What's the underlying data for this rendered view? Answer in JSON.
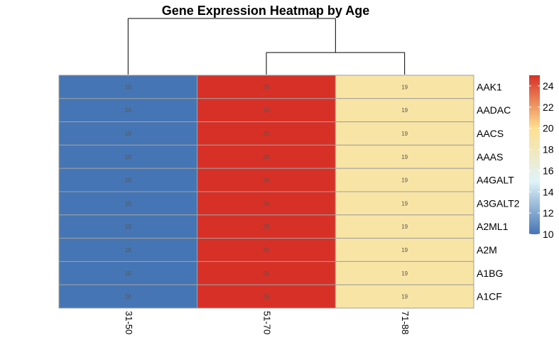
{
  "chart_data": {
    "type": "heatmap",
    "title": "Gene Expression Heatmap by Age",
    "columns": [
      "31-50",
      "51-70",
      "71-88"
    ],
    "rows": [
      "AAK1",
      "AADAC",
      "AACS",
      "AAAS",
      "A4GALT",
      "A3GALT2",
      "A2ML1",
      "A2M",
      "A1BG",
      "A1CF"
    ],
    "values": [
      [
        10,
        25,
        19
      ],
      [
        10,
        25,
        19
      ],
      [
        10,
        25,
        19
      ],
      [
        10,
        25,
        19
      ],
      [
        10,
        25,
        19
      ],
      [
        10,
        25,
        19
      ],
      [
        10,
        25,
        19
      ],
      [
        10,
        25,
        19
      ],
      [
        10,
        25,
        19
      ],
      [
        10,
        25,
        19
      ]
    ],
    "color_scale": {
      "min": 10,
      "max": 25,
      "stops": [
        "#4575b4",
        "#e0f3f8",
        "#fee090",
        "#d73027"
      ]
    },
    "legend": {
      "position": "right",
      "ticks": [
        10,
        12,
        14,
        16,
        18,
        20,
        22,
        24
      ]
    },
    "column_dendrogram": true
  }
}
